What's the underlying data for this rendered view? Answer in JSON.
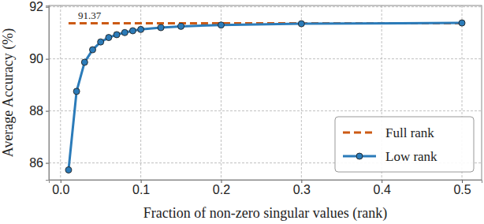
{
  "chart_data": {
    "type": "line",
    "x_label": "Fraction of non-zero singular values (rank)",
    "y_label": "Average Accuracy (%)",
    "xlim": [
      -0.0145,
      0.5245
    ],
    "ylim": [
      85.35,
      92.05
    ],
    "xticks": [
      {
        "value": 0,
        "label": "0.0"
      },
      {
        "value": 0.1,
        "label": "0.1"
      },
      {
        "value": 0.2,
        "label": "0.2"
      },
      {
        "value": 0.3,
        "label": "0.3"
      },
      {
        "value": 0.4,
        "label": "0.4"
      },
      {
        "value": 0.5,
        "label": "0.5"
      }
    ],
    "yticks": [
      86,
      88,
      90,
      92
    ],
    "grid": true,
    "legend": "lower right",
    "series": [
      {
        "name": "Full rank",
        "color": "#cc5a14",
        "line_style": "dashed",
        "marker": "none",
        "x": [
          0.01,
          0.5
        ],
        "values": [
          91.37,
          91.37
        ]
      },
      {
        "name": "Low rank",
        "color": "#2b7bb9",
        "line_style": "solid",
        "marker": "circle",
        "x": [
          0.01,
          0.02,
          0.03,
          0.04,
          0.05,
          0.06,
          0.07,
          0.08,
          0.09,
          0.1,
          0.125,
          0.15,
          0.2,
          0.3,
          0.5
        ],
        "values": [
          85.73,
          88.75,
          89.87,
          90.35,
          90.65,
          90.82,
          90.93,
          91.01,
          91.08,
          91.13,
          91.2,
          91.25,
          91.3,
          91.35,
          91.38
        ]
      }
    ],
    "annotations": [
      {
        "text": "91.37"
      }
    ]
  }
}
